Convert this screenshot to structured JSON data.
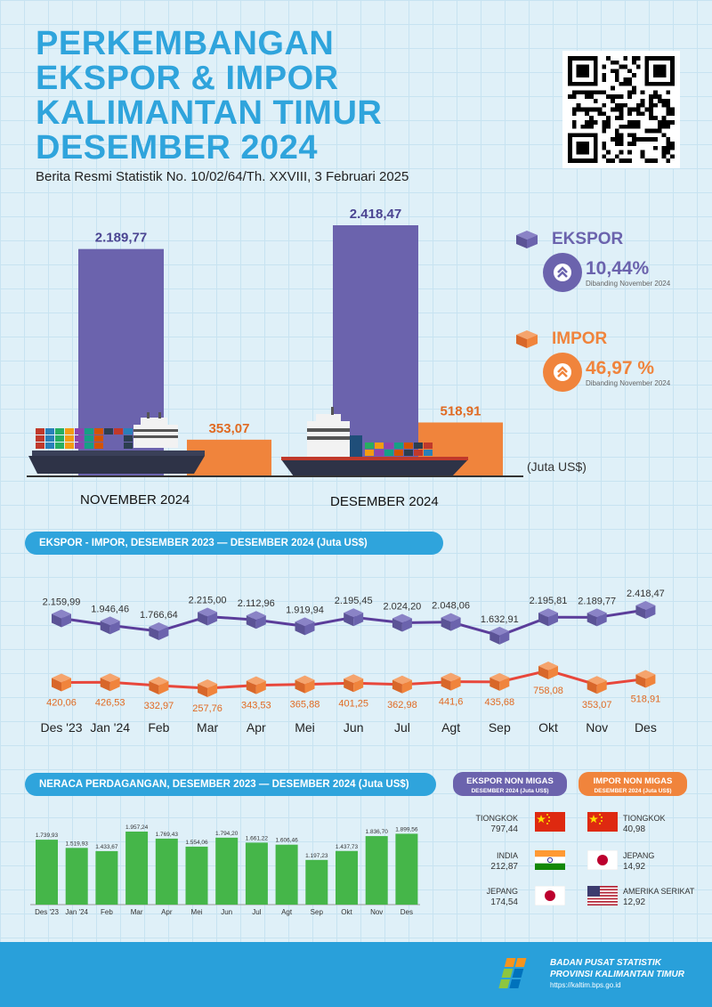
{
  "header": {
    "title_lines": [
      "PERKEMBANGAN",
      "EKSPOR & IMPOR",
      "KALIMANTAN TIMUR",
      "DESEMBER 2024"
    ],
    "subtitle": "Berita Resmi Statistik No. 10/02/64/Th. XXVIII, 3 Februari 2025"
  },
  "colors": {
    "ekspor": "#6b63ad",
    "impor": "#f0843c",
    "accent": "#2fa4dc",
    "neraca": "#45b649"
  },
  "summary": {
    "unit": "(Juta US$)",
    "ekspor_label": "EKSPOR",
    "ekspor_change": "10,44%",
    "impor_label": "IMPOR",
    "impor_change": "46,97 %",
    "compare_note": "Dibanding November 2024",
    "periods": [
      "NOVEMBER 2024",
      "DESEMBER 2024"
    ],
    "icons": [
      "container-icon",
      "double-chevron-up-icon",
      "ship-icon"
    ]
  },
  "chart_data": [
    {
      "type": "bar",
      "categories": [
        "NOVEMBER 2024",
        "DESEMBER 2024"
      ],
      "series": [
        {
          "name": "EKSPOR",
          "values": [
            2189.77,
            2418.47
          ],
          "labels": [
            "2.189,77",
            "2.418,47"
          ]
        },
        {
          "name": "IMPOR",
          "values": [
            353.07,
            518.91
          ],
          "labels": [
            "353,07",
            "518,91"
          ]
        }
      ],
      "ylabel": "(Juta US$)"
    },
    {
      "type": "line",
      "title": "EKSPOR - IMPOR, DESEMBER 2023 — DESEMBER 2024 (Juta US$)",
      "categories": [
        "Des '23",
        "Jan '24",
        "Feb",
        "Mar",
        "Apr",
        "Mei",
        "Jun",
        "Jul",
        "Agt",
        "Sep",
        "Okt",
        "Nov",
        "Des"
      ],
      "series": [
        {
          "name": "EKSPOR",
          "values": [
            2159.99,
            1946.46,
            1766.64,
            2215.0,
            2112.96,
            1919.94,
            2195.45,
            2024.2,
            2048.06,
            1632.91,
            2195.81,
            2189.77,
            2418.47
          ],
          "labels": [
            "2.159,99",
            "1.946,46",
            "1.766,64",
            "2.215,00",
            "2.112,96",
            "1.919,94",
            "2.195,45",
            "2.024,20",
            "2.048,06",
            "1.632,91",
            "2.195,81",
            "2.189,77",
            "2.418,47"
          ]
        },
        {
          "name": "IMPOR",
          "values": [
            420.06,
            426.53,
            332.97,
            257.76,
            343.53,
            365.88,
            401.25,
            362.98,
            441.6,
            435.68,
            758.08,
            353.07,
            518.91
          ],
          "labels": [
            "420,06",
            "426,53",
            "332,97",
            "257,76",
            "343,53",
            "365,88",
            "401,25",
            "362,98",
            "441,6",
            "435,68",
            "758,08",
            "353,07",
            "518,91"
          ]
        }
      ]
    },
    {
      "type": "bar",
      "title": "NERACA PERDAGANGAN, DESEMBER 2023 — DESEMBER 2024 (Juta US$)",
      "categories": [
        "Des '23",
        "Jan '24",
        "Feb",
        "Mar",
        "Apr",
        "Mei",
        "Jun",
        "Jul",
        "Agt",
        "Sep",
        "Okt",
        "Nov",
        "Des"
      ],
      "values": [
        1739.93,
        1519.93,
        1433.67,
        1957.24,
        1769.43,
        1554.06,
        1794.2,
        1661.22,
        1606.46,
        1197.23,
        1437.73,
        1836.7,
        1899.56
      ],
      "labels": [
        "1.739,93",
        "1.519,93",
        "1.433,67",
        "1.957,24",
        "1.769,43",
        "1.554,06",
        "1.794,20",
        "1.661,22",
        "1.606,46",
        "1.197,23",
        "1.437,73",
        "1.836,70",
        "1.899,56"
      ]
    }
  ],
  "partners": {
    "ekspor_title": "EKSPOR NON MIGAS",
    "ekspor_sub": "DESEMBER 2024 (Juta US$)",
    "impor_title": "IMPOR NON MIGAS",
    "impor_sub": "DESEMBER 2024 (Juta US$)",
    "ekspor": [
      {
        "country": "TIONGKOK",
        "value": "797,44",
        "flag": "china-flag-icon"
      },
      {
        "country": "INDIA",
        "value": "212,87",
        "flag": "india-flag-icon"
      },
      {
        "country": "JEPANG",
        "value": "174,54",
        "flag": "japan-flag-icon"
      }
    ],
    "impor": [
      {
        "country": "TIONGKOK",
        "value": "40,98",
        "flag": "china-flag-icon"
      },
      {
        "country": "JEPANG",
        "value": "14,92",
        "flag": "japan-flag-icon"
      },
      {
        "country": "AMERIKA SERIKAT",
        "value": "12,92",
        "flag": "usa-flag-icon"
      }
    ]
  },
  "footer": {
    "org_line1": "BADAN PUSAT STATISTIK",
    "org_line2": "PROVINSI KALIMANTAN TIMUR",
    "url": "https://kaltim.bps.go.id",
    "logo": "bps-logo-icon"
  }
}
